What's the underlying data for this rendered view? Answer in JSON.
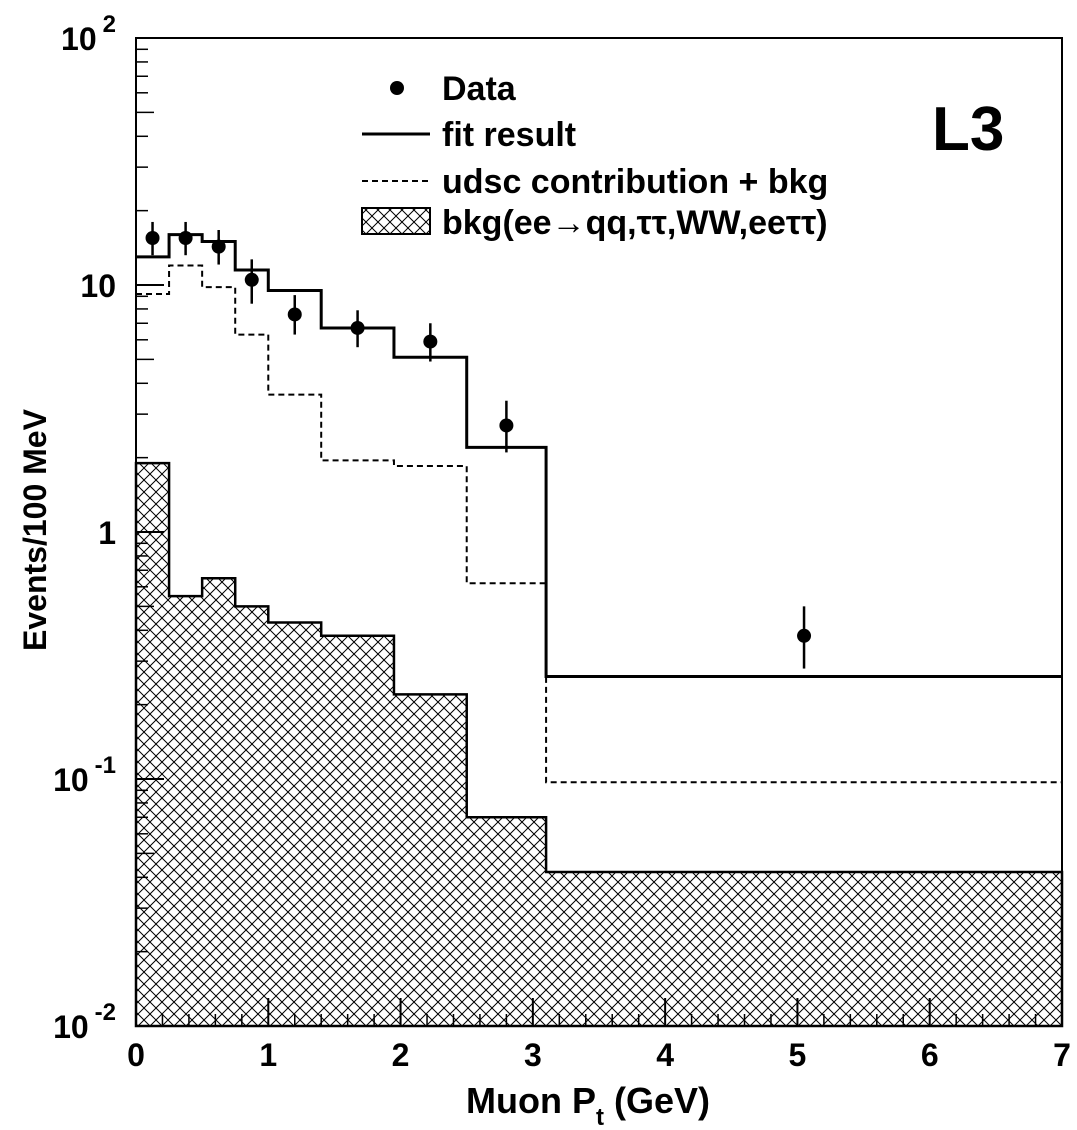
{
  "chart_data": {
    "type": "line",
    "experiment_label": "L3",
    "xlabel_main": "Muon P",
    "xlabel_sub": "t",
    "xlabel_unit": " (GeV)",
    "ylabel": "Events/100 MeV",
    "xlim": [
      0,
      7
    ],
    "ylim": [
      0.01,
      100
    ],
    "y_scale": "log",
    "x_ticks": [
      "0",
      "1",
      "2",
      "3",
      "4",
      "5",
      "6",
      "7"
    ],
    "y_ticks": [
      {
        "base": "10",
        "exp": "2"
      },
      {
        "base": "10",
        "exp": ""
      },
      {
        "base": "1",
        "exp": ""
      },
      {
        "base": "10",
        "exp": "-1"
      },
      {
        "base": "10",
        "exp": "-2"
      }
    ],
    "legend_position": "top-center",
    "legend": [
      {
        "label": "Data",
        "style": "marker"
      },
      {
        "label": "fit result",
        "style": "solid"
      },
      {
        "label": "udsc contribution + bkg",
        "style": "dashed"
      },
      {
        "label": "bkg(ee→qq,ττ,WW,eeττ)",
        "style": "hatched"
      }
    ],
    "bin_edges": [
      0,
      0.25,
      0.5,
      0.75,
      1.0,
      1.4,
      1.95,
      2.5,
      3.1,
      7.0
    ],
    "series": [
      {
        "name": "fit result",
        "style": "solid",
        "values": [
          13.0,
          16.0,
          15.0,
          11.5,
          9.5,
          6.7,
          5.1,
          2.2,
          0.26
        ]
      },
      {
        "name": "udsc contribution + bkg",
        "style": "dashed",
        "values": [
          9.2,
          12.0,
          9.8,
          6.3,
          3.6,
          1.95,
          1.85,
          0.62,
          0.097
        ]
      },
      {
        "name": "bkg(ee→qq,ττ,WW,eeττ)",
        "style": "hatched",
        "values": [
          1.9,
          0.55,
          0.65,
          0.5,
          0.43,
          0.38,
          0.22,
          0.07,
          0.042
        ]
      }
    ],
    "data_points": {
      "x": [
        0.125,
        0.375,
        0.625,
        0.875,
        1.2,
        1.675,
        2.225,
        2.8,
        5.05
      ],
      "y": [
        15.5,
        15.5,
        14.3,
        10.5,
        7.6,
        6.7,
        5.9,
        2.7,
        0.38
      ],
      "err_low": [
        2.3,
        2.3,
        2.2,
        2.1,
        1.3,
        1.1,
        1.0,
        0.6,
        0.1
      ],
      "err_high": [
        2.5,
        2.5,
        2.4,
        2.2,
        1.5,
        1.2,
        1.1,
        0.7,
        0.12
      ]
    }
  }
}
